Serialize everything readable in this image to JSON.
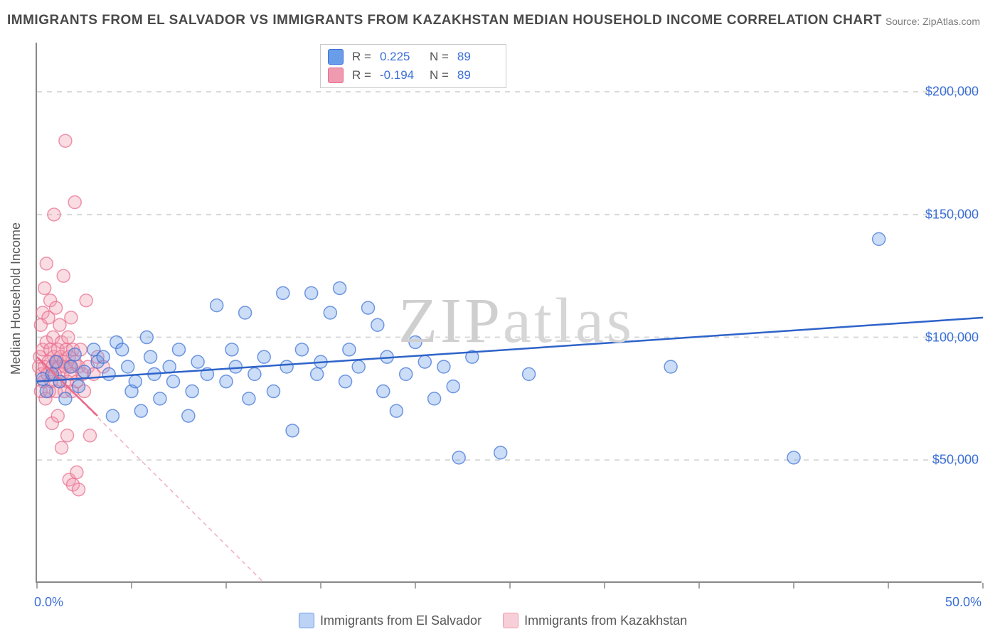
{
  "title": "IMMIGRANTS FROM EL SALVADOR VS IMMIGRANTS FROM KAZAKHSTAN MEDIAN HOUSEHOLD INCOME CORRELATION CHART",
  "source": "Source: ZipAtlas.com",
  "watermark": "ZIPatlas",
  "chart": {
    "type": "scatter",
    "xlim": [
      0,
      50
    ],
    "ylim": [
      0,
      220000
    ],
    "xlabel_min": "0.0%",
    "xlabel_max": "50.0%",
    "ylabel": "Median Household Income",
    "y_ticks": [
      50000,
      100000,
      150000,
      200000
    ],
    "y_tick_labels": [
      "$50,000",
      "$100,000",
      "$150,000",
      "$200,000"
    ],
    "x_ticks": [
      0,
      5,
      10,
      15,
      20,
      25,
      30,
      35,
      40,
      45,
      50
    ],
    "grid_color": "#d8d8d8",
    "axis_color": "#888888",
    "tick_label_color": "#3b6fd6",
    "background": "#ffffff",
    "marker_radius": 9,
    "marker_opacity": 0.35,
    "series": [
      {
        "name": "Immigrants from El Salvador",
        "color_fill": "#6a9de8",
        "color_stroke": "#3b6fd6",
        "R": "0.225",
        "N": "89",
        "trend": {
          "x1": 0,
          "y1": 82000,
          "x2": 50,
          "y2": 108000,
          "color": "#2e63c9",
          "width": 2.5,
          "dash": "none"
        },
        "points": [
          [
            0.3,
            83000
          ],
          [
            0.5,
            78000
          ],
          [
            0.8,
            85000
          ],
          [
            1.0,
            90000
          ],
          [
            1.2,
            82000
          ],
          [
            1.5,
            75000
          ],
          [
            1.8,
            88000
          ],
          [
            2.0,
            93000
          ],
          [
            2.2,
            80000
          ],
          [
            2.5,
            86000
          ],
          [
            3.0,
            95000
          ],
          [
            3.2,
            90000
          ],
          [
            3.5,
            92000
          ],
          [
            3.8,
            85000
          ],
          [
            4.0,
            68000
          ],
          [
            4.2,
            98000
          ],
          [
            4.5,
            95000
          ],
          [
            4.8,
            88000
          ],
          [
            5.0,
            78000
          ],
          [
            5.2,
            82000
          ],
          [
            5.5,
            70000
          ],
          [
            5.8,
            100000
          ],
          [
            6.0,
            92000
          ],
          [
            6.2,
            85000
          ],
          [
            6.5,
            75000
          ],
          [
            7.0,
            88000
          ],
          [
            7.2,
            82000
          ],
          [
            7.5,
            95000
          ],
          [
            8.0,
            68000
          ],
          [
            8.2,
            78000
          ],
          [
            8.5,
            90000
          ],
          [
            9.0,
            85000
          ],
          [
            9.5,
            113000
          ],
          [
            10.0,
            82000
          ],
          [
            10.3,
            95000
          ],
          [
            10.5,
            88000
          ],
          [
            11.0,
            110000
          ],
          [
            11.2,
            75000
          ],
          [
            11.5,
            85000
          ],
          [
            12.0,
            92000
          ],
          [
            12.5,
            78000
          ],
          [
            13.0,
            118000
          ],
          [
            13.2,
            88000
          ],
          [
            13.5,
            62000
          ],
          [
            14.0,
            95000
          ],
          [
            14.5,
            118000
          ],
          [
            14.8,
            85000
          ],
          [
            15.0,
            90000
          ],
          [
            15.5,
            110000
          ],
          [
            16.0,
            120000
          ],
          [
            16.3,
            82000
          ],
          [
            16.5,
            95000
          ],
          [
            17.0,
            88000
          ],
          [
            17.5,
            112000
          ],
          [
            18.0,
            105000
          ],
          [
            18.3,
            78000
          ],
          [
            18.5,
            92000
          ],
          [
            19.0,
            70000
          ],
          [
            19.5,
            85000
          ],
          [
            20.0,
            98000
          ],
          [
            20.5,
            90000
          ],
          [
            21.0,
            75000
          ],
          [
            21.5,
            88000
          ],
          [
            22.0,
            80000
          ],
          [
            22.3,
            51000
          ],
          [
            23.0,
            92000
          ],
          [
            24.5,
            53000
          ],
          [
            26.0,
            85000
          ],
          [
            33.5,
            88000
          ],
          [
            40.0,
            51000
          ],
          [
            44.5,
            140000
          ]
        ]
      },
      {
        "name": "Immigrants from Kazakhstan",
        "color_fill": "#f09ab0",
        "color_stroke": "#e86a8a",
        "R": "-0.194",
        "N": "89",
        "trend": {
          "x1": 0,
          "y1": 92000,
          "x2": 12,
          "y2": 0,
          "color": "#f0b0c0",
          "width": 1.5,
          "dash": "6,5"
        },
        "trend_solid": {
          "x1": 0,
          "y1": 92000,
          "x2": 3.2,
          "y2": 68000,
          "color": "#e86a8a",
          "width": 2.5
        },
        "points": [
          [
            0.1,
            88000
          ],
          [
            0.15,
            92000
          ],
          [
            0.2,
            78000
          ],
          [
            0.2,
            105000
          ],
          [
            0.25,
            85000
          ],
          [
            0.3,
            95000
          ],
          [
            0.3,
            110000
          ],
          [
            0.35,
            82000
          ],
          [
            0.4,
            88000
          ],
          [
            0.4,
            120000
          ],
          [
            0.45,
            75000
          ],
          [
            0.5,
            98000
          ],
          [
            0.5,
            130000
          ],
          [
            0.55,
            85000
          ],
          [
            0.6,
            90000
          ],
          [
            0.6,
            108000
          ],
          [
            0.65,
            78000
          ],
          [
            0.7,
            95000
          ],
          [
            0.7,
            115000
          ],
          [
            0.75,
            82000
          ],
          [
            0.8,
            88000
          ],
          [
            0.8,
            65000
          ],
          [
            0.85,
            100000
          ],
          [
            0.9,
            92000
          ],
          [
            0.9,
            150000
          ],
          [
            0.95,
            85000
          ],
          [
            1.0,
            78000
          ],
          [
            1.0,
            112000
          ],
          [
            1.05,
            90000
          ],
          [
            1.1,
            95000
          ],
          [
            1.1,
            68000
          ],
          [
            1.15,
            88000
          ],
          [
            1.2,
            82000
          ],
          [
            1.2,
            105000
          ],
          [
            1.25,
            92000
          ],
          [
            1.3,
            98000
          ],
          [
            1.3,
            55000
          ],
          [
            1.35,
            85000
          ],
          [
            1.4,
            90000
          ],
          [
            1.4,
            125000
          ],
          [
            1.45,
            78000
          ],
          [
            1.5,
            88000
          ],
          [
            1.5,
            180000
          ],
          [
            1.55,
            95000
          ],
          [
            1.6,
            82000
          ],
          [
            1.6,
            60000
          ],
          [
            1.65,
            100000
          ],
          [
            1.7,
            92000
          ],
          [
            1.7,
            42000
          ],
          [
            1.75,
            88000
          ],
          [
            1.8,
            85000
          ],
          [
            1.8,
            108000
          ],
          [
            1.85,
            78000
          ],
          [
            1.9,
            95000
          ],
          [
            1.9,
            40000
          ],
          [
            2.0,
            90000
          ],
          [
            2.0,
            155000
          ],
          [
            2.1,
            82000
          ],
          [
            2.1,
            45000
          ],
          [
            2.2,
            88000
          ],
          [
            2.2,
            38000
          ],
          [
            2.3,
            95000
          ],
          [
            2.4,
            85000
          ],
          [
            2.5,
            78000
          ],
          [
            2.6,
            115000
          ],
          [
            2.7,
            88000
          ],
          [
            2.8,
            60000
          ],
          [
            3.0,
            85000
          ],
          [
            3.2,
            92000
          ],
          [
            3.5,
            88000
          ]
        ]
      }
    ],
    "legend_bottom": [
      {
        "label": "Immigrants from El Salvador",
        "fill": "#bcd3f5",
        "stroke": "#6a9de8"
      },
      {
        "label": "Immigrants from Kazakhstan",
        "fill": "#f8cfd9",
        "stroke": "#f09ab0"
      }
    ]
  }
}
